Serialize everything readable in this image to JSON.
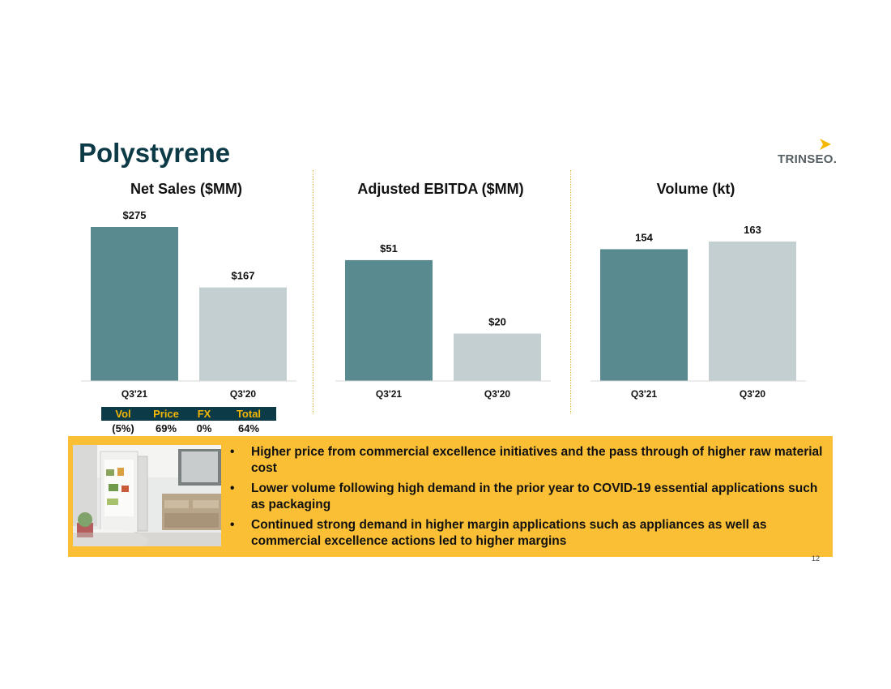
{
  "slide": {
    "title": "Polystyrene",
    "page_number": "12"
  },
  "logo": {
    "text": "TRINSEO.",
    "accent_color": "#f5b800"
  },
  "colors": {
    "primary_bar": "#588a90",
    "secondary_bar": "#c3cfd1",
    "banner": "#fbbf35",
    "header_text": "#0d3a47",
    "table_header_text": "#f2b705"
  },
  "chart_data": [
    {
      "type": "bar",
      "title": "Net Sales ($MM)",
      "categories": [
        "Q3'21",
        "Q3'20"
      ],
      "values": [
        275,
        167
      ],
      "labels": [
        "$275",
        "$167"
      ],
      "ylim": [
        0,
        275
      ]
    },
    {
      "type": "bar",
      "title": "Adjusted EBITDA ($MM)",
      "categories": [
        "Q3'21",
        "Q3'20"
      ],
      "values": [
        51,
        20
      ],
      "labels": [
        "$51",
        "$20"
      ],
      "ylim": [
        0,
        65
      ]
    },
    {
      "type": "bar",
      "title": "Volume (kt)",
      "categories": [
        "Q3'21",
        "Q3'20"
      ],
      "values": [
        154,
        163
      ],
      "labels": [
        "154",
        "163"
      ],
      "ylim": [
        0,
        180
      ]
    }
  ],
  "mix_table": {
    "headers": [
      "Vol",
      "Price",
      "FX",
      "Total"
    ],
    "values": [
      "(5%)",
      "69%",
      "0%",
      "64%"
    ]
  },
  "bullets": [
    "Higher price from commercial excellence initiatives and the pass through of higher raw material cost",
    "Lower volume following high demand in the prior year to COVID-19 essential applications such as packaging",
    "Continued strong demand in higher margin applications such as appliances as well as commercial excellence actions led to higher margins"
  ],
  "bullet_symbol": "•"
}
